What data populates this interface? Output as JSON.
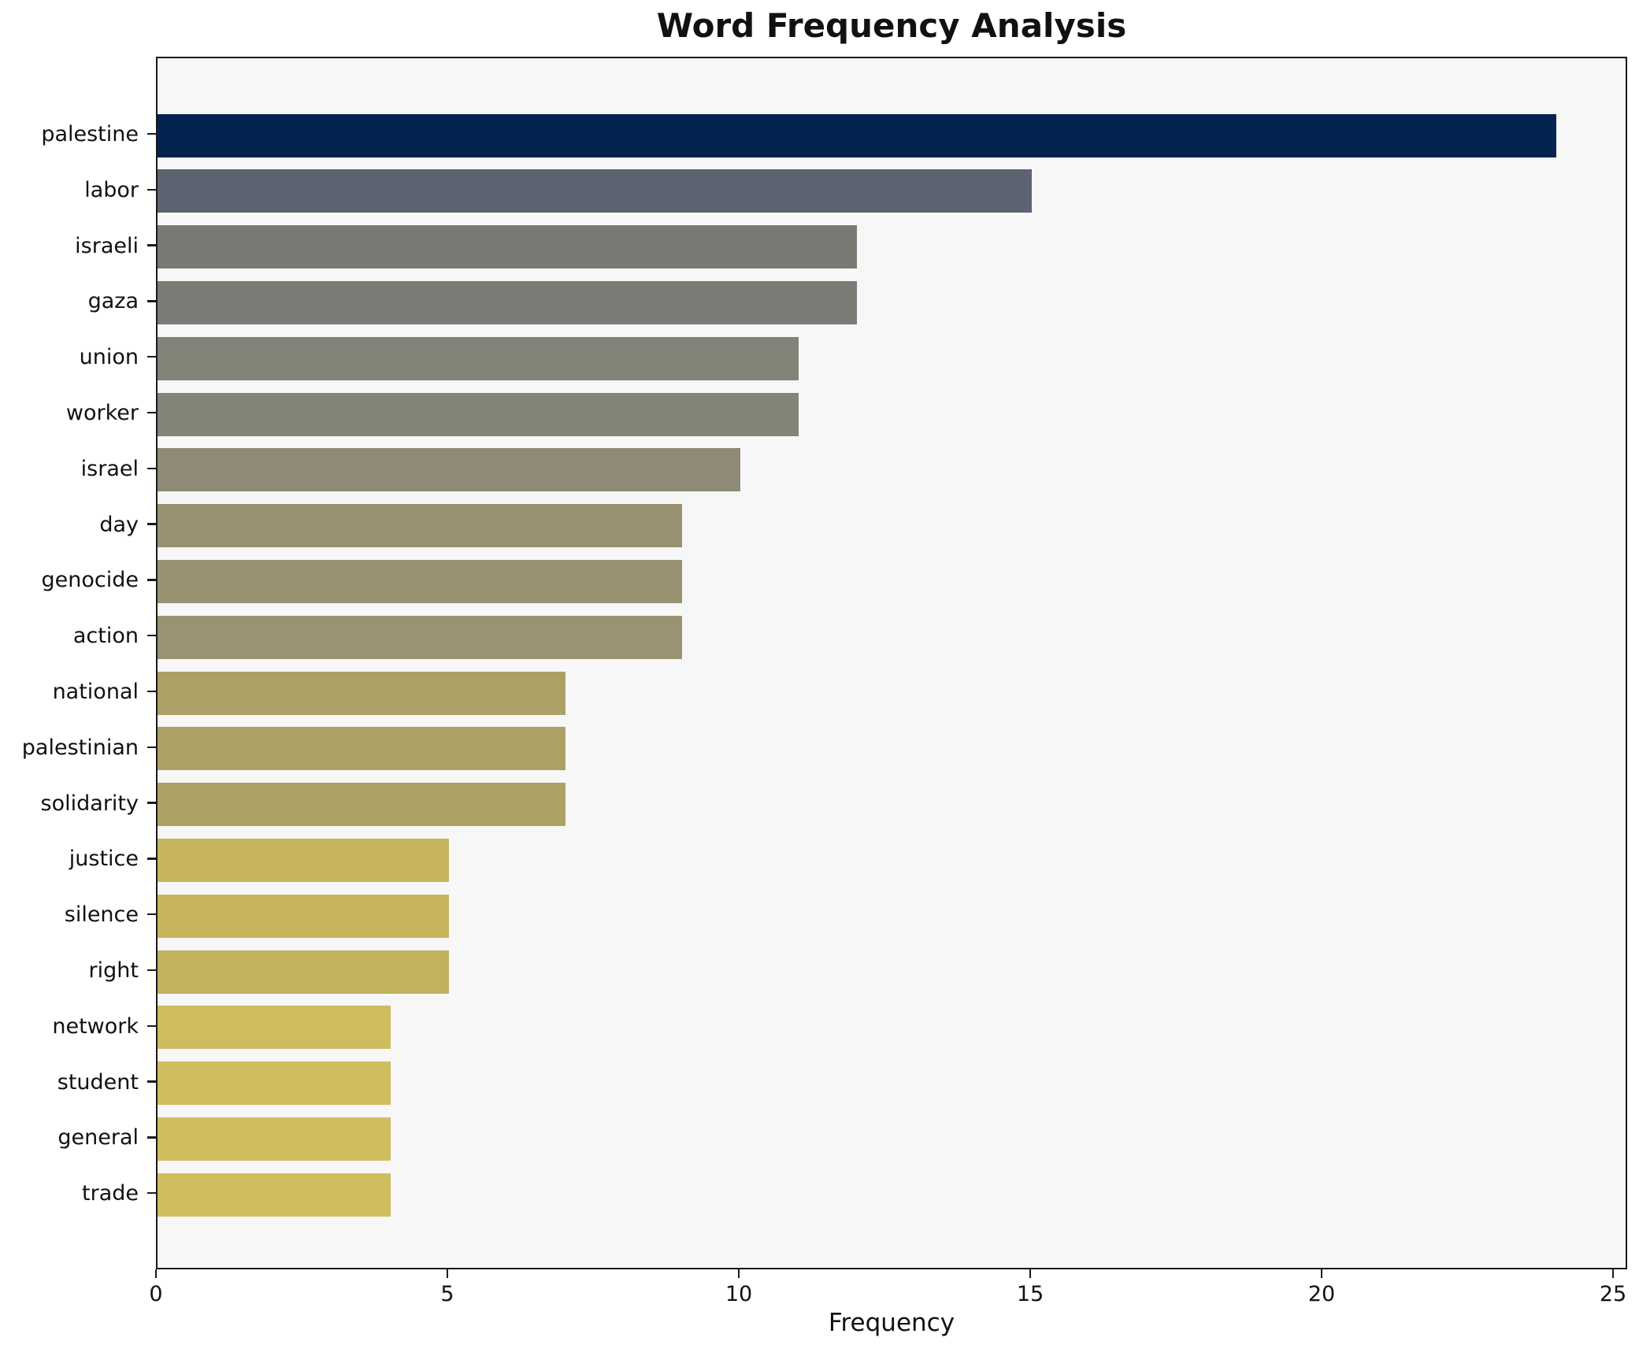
{
  "page": {
    "background": "#ffffff"
  },
  "chart_data": {
    "type": "bar",
    "orientation": "horizontal",
    "title": "Word Frequency Analysis",
    "xlabel": "Frequency",
    "ylabel": "",
    "xlim": [
      0,
      25.24
    ],
    "xticks": [
      0,
      5,
      10,
      15,
      20,
      25
    ],
    "grid": false,
    "legend": null,
    "plot_background": "#f7f7f7",
    "spine_color": "#1a1a1a",
    "categories": [
      "palestine",
      "labor",
      "israeli",
      "gaza",
      "union",
      "worker",
      "israel",
      "day",
      "genocide",
      "action",
      "national",
      "palestinian",
      "solidarity",
      "justice",
      "silence",
      "right",
      "network",
      "student",
      "general",
      "trade"
    ],
    "values": [
      24,
      15,
      12,
      12,
      11,
      11,
      10,
      9,
      9,
      9,
      7,
      7,
      7,
      5,
      5,
      5,
      4,
      4,
      4,
      4
    ],
    "bar_colors": [
      "#04234e",
      "#5d6270",
      "#797974",
      "#7b7a75",
      "#828277",
      "#848378",
      "#8f8a77",
      "#989271",
      "#999271",
      "#999372",
      "#aba065",
      "#aca065",
      "#ada166",
      "#c6b55e",
      "#c6b55e",
      "#c2b15f",
      "#cfbc5e",
      "#d0bd5f",
      "#d0bd5f",
      "#d0bd5f"
    ]
  }
}
